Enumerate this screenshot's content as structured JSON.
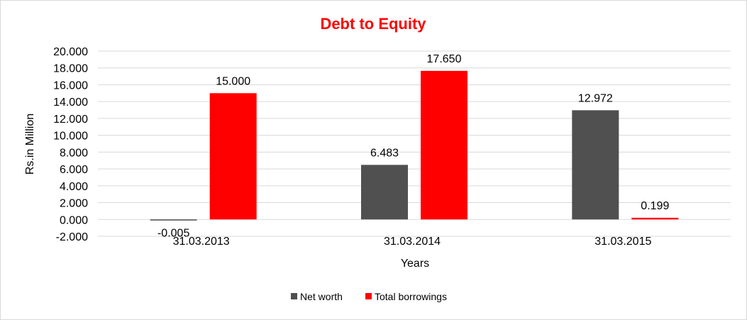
{
  "chart_data": {
    "type": "bar",
    "title": "Debt to Equity",
    "xlabel": "Years",
    "ylabel": "Rs.in Million",
    "categories": [
      "31.03.2013",
      "31.03.2014",
      "31.03.2015"
    ],
    "series": [
      {
        "name": "Net worth",
        "values": [
          -0.005,
          6.483,
          12.972
        ],
        "color": "#505050",
        "labels": [
          "-0.005",
          "6.483",
          "12.972"
        ]
      },
      {
        "name": "Total borrowings",
        "values": [
          15.0,
          17.65,
          0.199
        ],
        "color": "#ff0000",
        "labels": [
          "15.000",
          "17.650",
          "0.199"
        ]
      }
    ],
    "ylim": [
      -2,
      20
    ],
    "yticks": [
      "-2.000",
      "0.000",
      "2.000",
      "4.000",
      "6.000",
      "8.000",
      "10.000",
      "12.000",
      "14.000",
      "16.000",
      "18.000",
      "20.000"
    ],
    "grid": true,
    "legend": "bottom",
    "title_color": "#ff0000"
  }
}
